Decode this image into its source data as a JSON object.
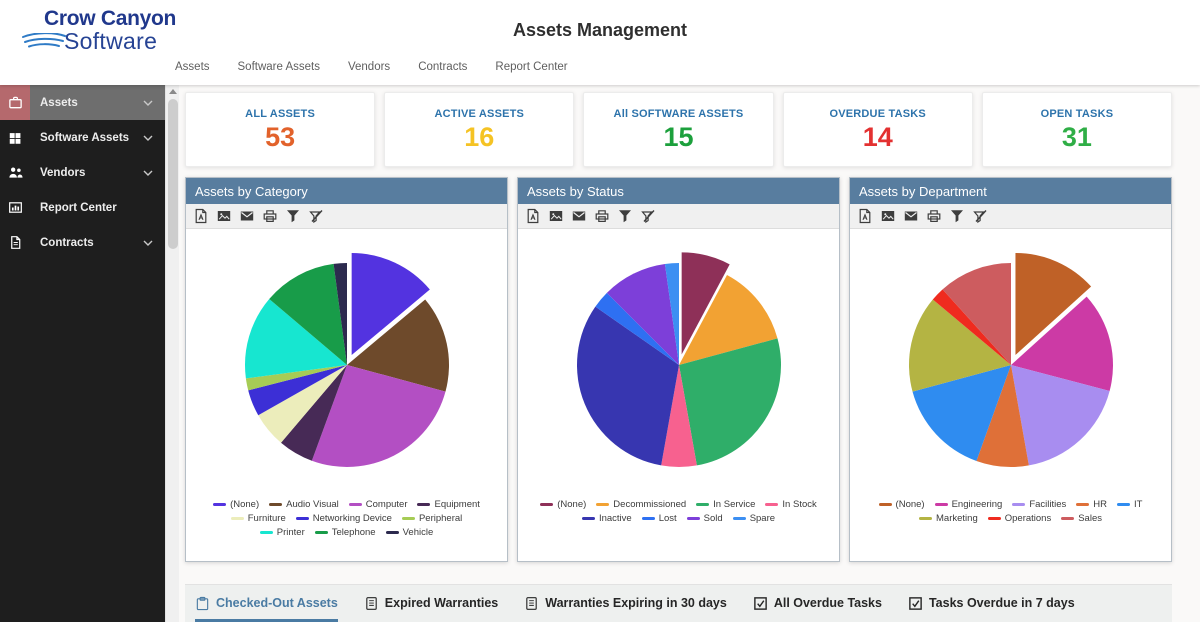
{
  "header": {
    "logo": {
      "line1": "Crow Canyon",
      "line2": "Software"
    },
    "title": "Assets Management",
    "nav": [
      {
        "label": "Assets"
      },
      {
        "label": "Software Assets"
      },
      {
        "label": "Vendors"
      },
      {
        "label": "Contracts"
      },
      {
        "label": "Report Center"
      }
    ]
  },
  "sidebar": {
    "items": [
      {
        "label": "Assets",
        "icon": "briefcase-icon",
        "chevron": true,
        "active": true
      },
      {
        "label": "Software Assets",
        "icon": "windows-icon",
        "chevron": true,
        "active": false
      },
      {
        "label": "Vendors",
        "icon": "people-icon",
        "chevron": true,
        "active": false
      },
      {
        "label": "Report Center",
        "icon": "report-icon",
        "chevron": false,
        "active": false
      },
      {
        "label": "Contracts",
        "icon": "document-icon",
        "chevron": true,
        "active": false
      }
    ]
  },
  "kpi": {
    "label_color": "#2d73ab",
    "cards": [
      {
        "label": "ALL ASSETS",
        "value": "53",
        "value_color": "#e2622b"
      },
      {
        "label": "ACTIVE ASSETS",
        "value": "16",
        "value_color": "#f5c324"
      },
      {
        "label": "All SOFTWARE ASSETS",
        "value": "15",
        "value_color": "#1ca03c"
      },
      {
        "label": "OVERDUE TASKS",
        "value": "14",
        "value_color": "#e33131"
      },
      {
        "label": "OPEN TASKS",
        "value": "31",
        "value_color": "#2fae46"
      }
    ]
  },
  "chart_toolbar": {
    "icons": [
      "export-pdf",
      "export-image",
      "email",
      "print",
      "filter",
      "clear-filter"
    ]
  },
  "chart_data": [
    {
      "type": "pie",
      "title": "Assets by Category",
      "legend_position": "bottom",
      "values_are": "percent_of_total",
      "exploded_index": 0,
      "labels": [
        "(None)",
        "Audio Visual",
        "Computer",
        "Equipment",
        "Furniture",
        "Networking Device",
        "Peripheral",
        "Printer",
        "Telephone",
        "Vehicle"
      ],
      "values": [
        13.9,
        15.3,
        26.4,
        5.6,
        5.6,
        4.2,
        1.9,
        13.3,
        11.7,
        2.1
      ],
      "colors": [
        "#5333e0",
        "#6e4a2b",
        "#b34fc3",
        "#472a56",
        "#ecedbb",
        "#3c2fd6",
        "#a6cc55",
        "#17e6d0",
        "#189c49",
        "#2c2a4e"
      ]
    },
    {
      "type": "pie",
      "title": "Assets by Status",
      "legend_position": "bottom",
      "values_are": "percent_of_total",
      "exploded_index": 0,
      "labels": [
        "(None)",
        "Decommissioned",
        "In Service",
        "In Stock",
        "Inactive",
        "Lost",
        "Sold",
        "Spare"
      ],
      "values": [
        7.8,
        13.0,
        26.4,
        5.6,
        31.9,
        2.8,
        10.3,
        2.2
      ],
      "colors": [
        "#8e3058",
        "#f2a233",
        "#2fae69",
        "#f7618f",
        "#3736b0",
        "#2e70f2",
        "#7d3fd9",
        "#3c8ff2"
      ]
    },
    {
      "type": "pie",
      "title": "Assets by Department",
      "legend_position": "bottom",
      "values_are": "percent_of_total",
      "exploded_index": 0,
      "labels": [
        "(None)",
        "Engineering",
        "Facilities",
        "HR",
        "IT",
        "Marketing",
        "Operations",
        "Sales"
      ],
      "values": [
        13.3,
        15.8,
        18.1,
        8.3,
        15.3,
        15.3,
        2.2,
        11.7
      ],
      "colors": [
        "#bf6127",
        "#cc3aa5",
        "#a88df0",
        "#df7038",
        "#2f8cf0",
        "#b4b443",
        "#ef2b1f",
        "#cd5c5f"
      ]
    }
  ],
  "tabs": {
    "items": [
      {
        "label": "Checked-Out Assets",
        "icon": "clipboard-icon",
        "active": true
      },
      {
        "label": "Expired Warranties",
        "icon": "document-icon",
        "active": false
      },
      {
        "label": "Warranties Expiring in 30 days",
        "icon": "document-icon",
        "active": false
      },
      {
        "label": "All Overdue Tasks",
        "icon": "checkbox-icon",
        "active": false
      },
      {
        "label": "Tasks Overdue in 7 days",
        "icon": "checkbox-icon",
        "active": false
      }
    ]
  },
  "theme": {
    "panel_header_bg": "#587d9f",
    "active_tab_color": "#4a7ba3",
    "sidebar_bg": "#1e1e1e",
    "sidebar_active_bg": "#6e6e6e",
    "sidebar_active_icon_bg": "#b5696d"
  }
}
